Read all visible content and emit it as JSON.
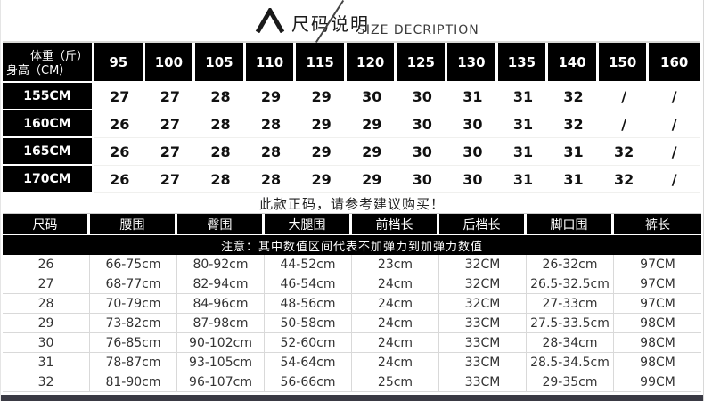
{
  "header": {
    "title_cn": "尺码说明",
    "title_en": "SIZE DECRIPTION"
  },
  "size_matrix": {
    "corner": {
      "top_right": "体重（斤）",
      "bottom_left": "身高（CM）"
    },
    "weight_columns": [
      "95",
      "100",
      "105",
      "110",
      "115",
      "120",
      "125",
      "130",
      "135",
      "140",
      "150",
      "160"
    ],
    "rows": [
      {
        "height": "155CM",
        "sizes": [
          "27",
          "27",
          "28",
          "29",
          "29",
          "30",
          "30",
          "31",
          "31",
          "32",
          "/",
          "/"
        ]
      },
      {
        "height": "160CM",
        "sizes": [
          "26",
          "27",
          "28",
          "28",
          "29",
          "29",
          "30",
          "30",
          "31",
          "32",
          "/",
          "/"
        ]
      },
      {
        "height": "165CM",
        "sizes": [
          "26",
          "27",
          "28",
          "28",
          "29",
          "29",
          "30",
          "30",
          "31",
          "31",
          "32",
          "/"
        ]
      },
      {
        "height": "170CM",
        "sizes": [
          "26",
          "27",
          "28",
          "28",
          "29",
          "29",
          "30",
          "30",
          "31",
          "31",
          "32",
          "/"
        ]
      }
    ]
  },
  "advice_text": "此款正码，请参考建议购买！",
  "measurements": {
    "headers": [
      "尺码",
      "腰围",
      "臀围",
      "大腿围",
      "前档长",
      "后档长",
      "脚口围",
      "裤长"
    ],
    "notice": "注意：其中数值区间代表不加弹力到加弹力数值",
    "rows": [
      [
        "26",
        "66-75cm",
        "80-92cm",
        "44-52cm",
        "23cm",
        "32CM",
        "26-32cm",
        "97CM"
      ],
      [
        "27",
        "68-77cm",
        "82-94cm",
        "46-54cm",
        "24cm",
        "32CM",
        "26.5-32.5cm",
        "97CM"
      ],
      [
        "28",
        "70-79cm",
        "84-96cm",
        "48-56cm",
        "24cm",
        "32CM",
        "27-33cm",
        "97CM"
      ],
      [
        "29",
        "73-82cm",
        "87-98cm",
        "50-58cm",
        "24cm",
        "33CM",
        "27.5-33.5cm",
        "98CM"
      ],
      [
        "30",
        "76-85cm",
        "90-102cm",
        "52-60cm",
        "24cm",
        "33CM",
        "28-34cm",
        "98CM"
      ],
      [
        "31",
        "78-87cm",
        "93-105cm",
        "54-64cm",
        "24cm",
        "33CM",
        "28.5-34.5cm",
        "98CM"
      ],
      [
        "32",
        "81-90cm",
        "96-107cm",
        "56-66cm",
        "25cm",
        "33CM",
        "29-35cm",
        "99CM"
      ]
    ]
  },
  "colors": {
    "header_cell_bg": "#000000",
    "header_cell_text": "#ffffff",
    "data_text": "#333333",
    "bottom_bar": "#3a3a44",
    "grid_border": "#d9d9d9"
  }
}
